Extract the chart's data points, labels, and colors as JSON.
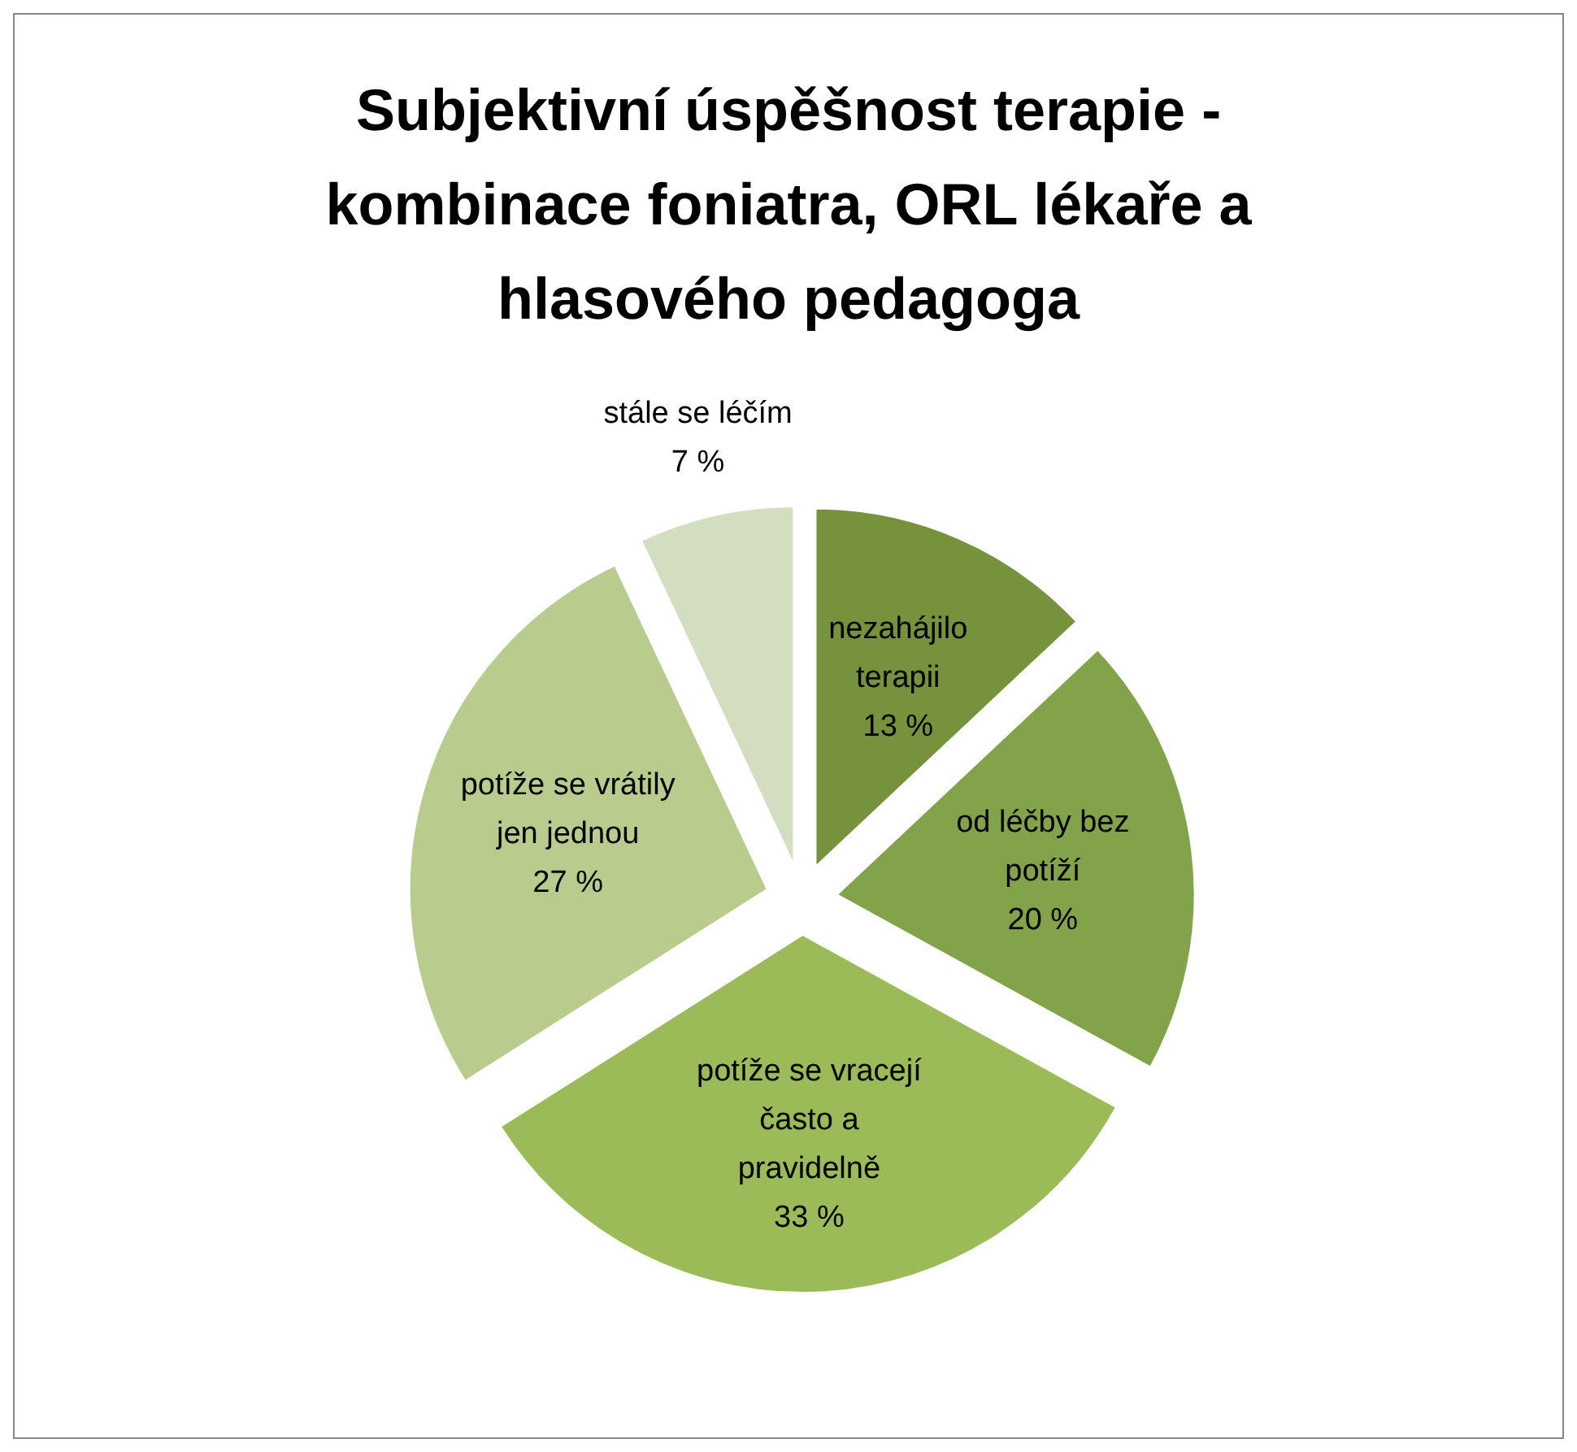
{
  "chart_data": {
    "type": "pie",
    "title": "Subjektivní úspěšnost  terapie - kombinace foniatra, ORL lékaře a hlasového pedagoga",
    "categories": [
      "nezahájilo terapii",
      "od léčby bez potíží",
      "potíže se vracejí často a pravidelně",
      "potíže se vrátily jen jednou",
      "stále se léčím"
    ],
    "values": [
      13,
      20,
      33,
      27,
      7
    ],
    "value_labels": [
      "13 %",
      "20 %",
      "33 %",
      "27 %",
      "7 %"
    ],
    "colors": [
      "#76923c",
      "#82a34a",
      "#9bbb59",
      "#b8cc8e",
      "#d3dec1"
    ]
  }
}
